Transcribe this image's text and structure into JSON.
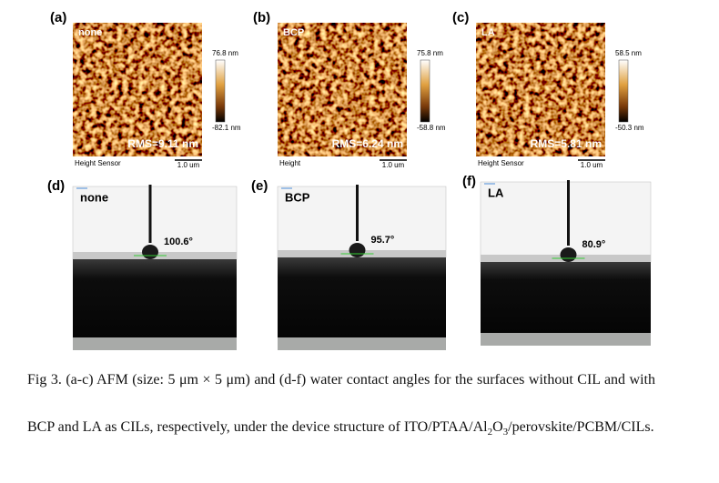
{
  "afm_panels": [
    {
      "label": "(a)",
      "sample": "none",
      "max": "76.8 nm",
      "min": "-82.1 nm",
      "rms": "RMS=9.11 nm",
      "sensor": "Height Sensor",
      "scale": "1.0 um"
    },
    {
      "label": "(b)",
      "sample": "BCP",
      "max": "75.8 nm",
      "min": "-58.8 nm",
      "rms": "RMS=6.24 nm",
      "sensor": "Height",
      "scale": "1.0 um"
    },
    {
      "label": "(c)",
      "sample": "LA",
      "max": "58.5 nm",
      "min": "-50.3 nm",
      "rms": "RMS=5.81 nm",
      "sensor": "Height Sensor",
      "scale": "1.0 um"
    }
  ],
  "contact_panels": [
    {
      "label": "(d)",
      "sample": "none",
      "angle": "100.6°"
    },
    {
      "label": "(e)",
      "sample": "BCP",
      "angle": "95.7°"
    },
    {
      "label": "(f)",
      "sample": "LA",
      "angle": "80.9°"
    }
  ],
  "caption": [
    "Fig 3. (a-c) AFM (size: 5 μm × 5 μm) and (d-f) water contact angles for the surfaces without CIL and with BCP and LA as CILs, respectively, under the device structure of ITO/PTAA/Al",
    "2",
    "O",
    "3",
    "/perovskite/PCBM/CILs."
  ]
}
